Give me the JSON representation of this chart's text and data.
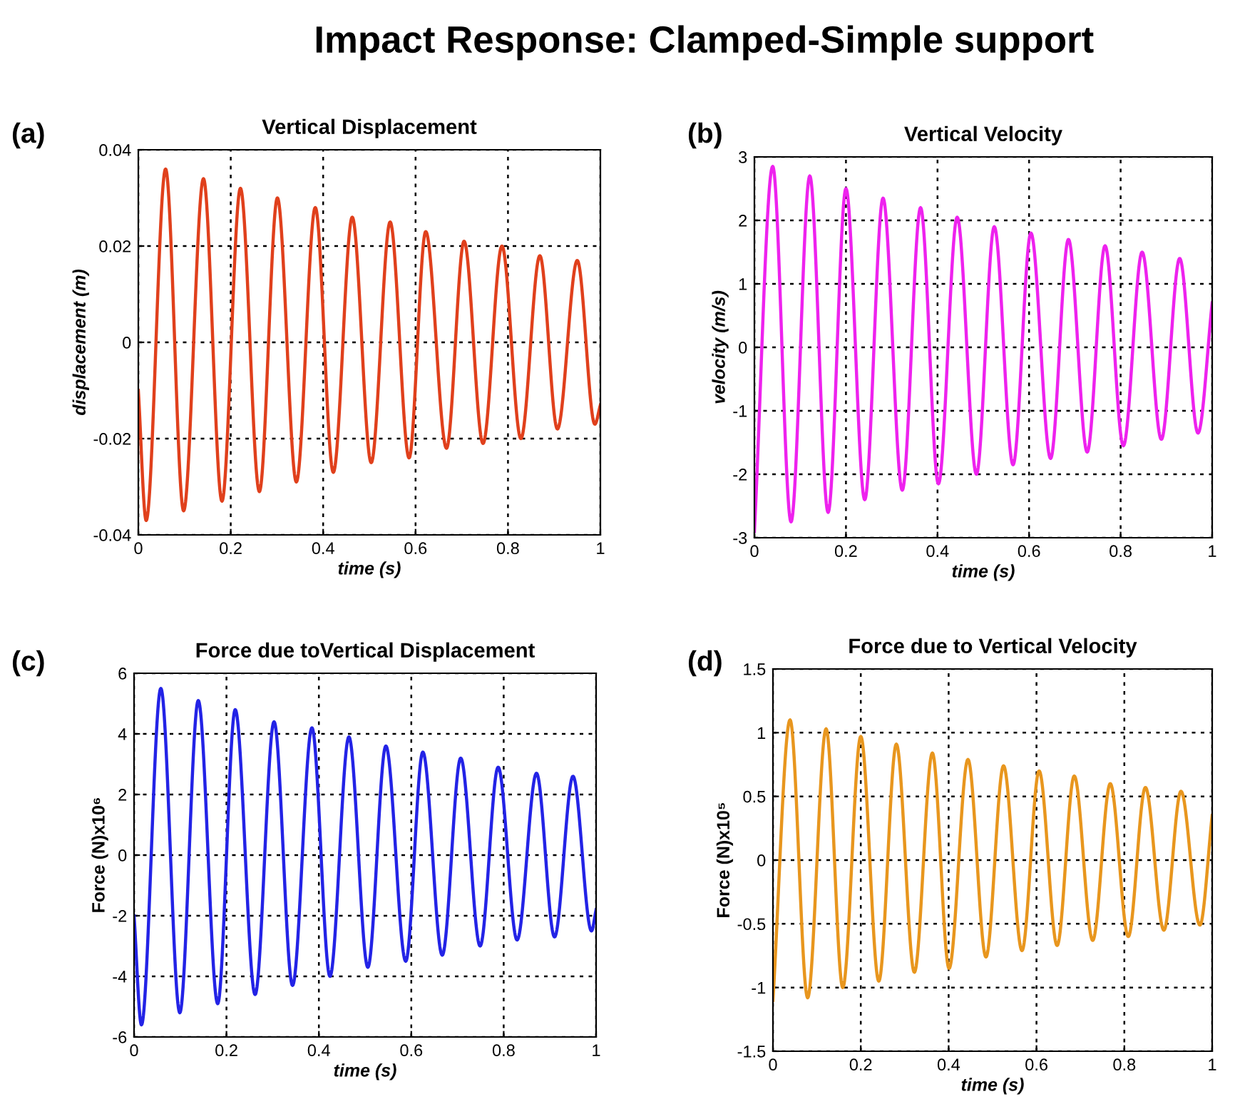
{
  "chart_data": [
    {
      "type": "line",
      "title": "Vertical Displacement",
      "xlabel": "time (s)",
      "ylabel": "displacement (m)",
      "annotations": [
        "Impact Response: Clamped-Simple support",
        "(a)"
      ],
      "series": [
        {
          "color": "#e0401c",
          "x": [
            0,
            0.017,
            0.059,
            0.098,
            0.141,
            0.181,
            0.221,
            0.262,
            0.301,
            0.342,
            0.383,
            0.422,
            0.463,
            0.504,
            0.545,
            0.586,
            0.622,
            0.667,
            0.705,
            0.746,
            0.787,
            0.828,
            0.869,
            0.907,
            0.95,
            0.988,
            1
          ],
          "values": [
            -0.01,
            -0.037,
            0.036,
            -0.035,
            0.034,
            -0.033,
            0.032,
            -0.031,
            0.03,
            -0.029,
            0.028,
            -0.027,
            0.026,
            -0.025,
            0.025,
            -0.024,
            0.023,
            -0.022,
            0.021,
            -0.021,
            0.02,
            -0.02,
            0.018,
            -0.018,
            0.017,
            -0.017,
            -0.013
          ]
        }
      ],
      "xlim": [
        0,
        1
      ],
      "xticks": [
        0,
        0.2,
        0.4,
        0.6,
        0.8,
        1
      ],
      "ylim": [
        -0.04,
        0.04
      ],
      "yticks": [
        -0.04,
        -0.02,
        0,
        0.02,
        0.04
      ],
      "grid": true,
      "marker": "none",
      "line_style": "solid"
    },
    {
      "type": "line",
      "title": "Vertical Velocity",
      "xlabel": "time (s)",
      "ylabel": "velocity (m/s)",
      "annotations": [
        "(b)"
      ],
      "series": [
        {
          "color": "#ee22ee",
          "x": [
            0,
            0.04,
            0.08,
            0.121,
            0.161,
            0.2,
            0.241,
            0.281,
            0.323,
            0.363,
            0.402,
            0.443,
            0.485,
            0.524,
            0.565,
            0.604,
            0.647,
            0.686,
            0.727,
            0.766,
            0.806,
            0.847,
            0.889,
            0.929,
            0.969,
            1
          ],
          "values": [
            -2.9,
            2.85,
            -2.75,
            2.7,
            -2.6,
            2.5,
            -2.4,
            2.35,
            -2.25,
            2.2,
            -2.15,
            2.05,
            -2.0,
            1.9,
            -1.85,
            1.8,
            -1.75,
            1.7,
            -1.65,
            1.6,
            -1.55,
            1.5,
            -1.45,
            1.4,
            -1.35,
            0.7
          ]
        }
      ],
      "xlim": [
        0,
        1
      ],
      "xticks": [
        0,
        0.2,
        0.4,
        0.6,
        0.8,
        1
      ],
      "ylim": [
        -3,
        3
      ],
      "yticks": [
        -3,
        -2,
        -1,
        0,
        1,
        2,
        3
      ],
      "grid": true,
      "marker": "none",
      "line_style": "solid"
    },
    {
      "type": "line",
      "title": "Force due toVertical Displacement",
      "xlabel": "time (s)",
      "ylabel": "Force (N)x10⁶",
      "annotations": [
        "(c)"
      ],
      "series": [
        {
          "color": "#2323e6",
          "x": [
            0,
            0.016,
            0.058,
            0.099,
            0.139,
            0.181,
            0.219,
            0.262,
            0.303,
            0.343,
            0.385,
            0.424,
            0.465,
            0.506,
            0.545,
            0.588,
            0.625,
            0.667,
            0.707,
            0.749,
            0.788,
            0.829,
            0.871,
            0.91,
            0.95,
            0.99,
            1
          ],
          "values": [
            -2.0,
            -5.6,
            5.5,
            -5.2,
            5.1,
            -4.9,
            4.8,
            -4.6,
            4.4,
            -4.3,
            4.2,
            -4.0,
            3.9,
            -3.7,
            3.6,
            -3.5,
            3.4,
            -3.3,
            3.2,
            -3.0,
            2.9,
            -2.8,
            2.7,
            -2.7,
            2.6,
            -2.5,
            -1.8
          ]
        }
      ],
      "xlim": [
        0,
        1
      ],
      "xticks": [
        0,
        0.2,
        0.4,
        0.6,
        0.8,
        1
      ],
      "ylim": [
        -6,
        6
      ],
      "yticks": [
        -6,
        -4,
        -2,
        0,
        2,
        4,
        6
      ],
      "grid": true,
      "marker": "none",
      "line_style": "solid"
    },
    {
      "type": "line",
      "title": "Force due to Vertical Velocity",
      "xlabel": "time (s)",
      "ylabel": "Force (N)x10⁵",
      "annotations": [
        "(d)"
      ],
      "series": [
        {
          "color": "#e8961e",
          "x": [
            0,
            0.039,
            0.079,
            0.121,
            0.159,
            0.2,
            0.241,
            0.281,
            0.322,
            0.363,
            0.401,
            0.444,
            0.485,
            0.525,
            0.567,
            0.606,
            0.647,
            0.686,
            0.728,
            0.768,
            0.809,
            0.848,
            0.89,
            0.929,
            0.972,
            1
          ],
          "values": [
            -1.1,
            1.1,
            -1.08,
            1.03,
            -1.0,
            0.97,
            -0.95,
            0.91,
            -0.88,
            0.84,
            -0.85,
            0.79,
            -0.76,
            0.74,
            -0.71,
            0.7,
            -0.67,
            0.66,
            -0.63,
            0.6,
            -0.6,
            0.57,
            -0.55,
            0.54,
            -0.51,
            0.35
          ]
        }
      ],
      "xlim": [
        0,
        1
      ],
      "xticks": [
        0,
        0.2,
        0.4,
        0.6,
        0.8,
        1
      ],
      "ylim": [
        -1.5,
        1.5
      ],
      "yticks": [
        -1.5,
        -1,
        -0.5,
        0,
        0.5,
        1,
        1.5
      ],
      "grid": true,
      "marker": "none",
      "line_style": "solid"
    }
  ]
}
